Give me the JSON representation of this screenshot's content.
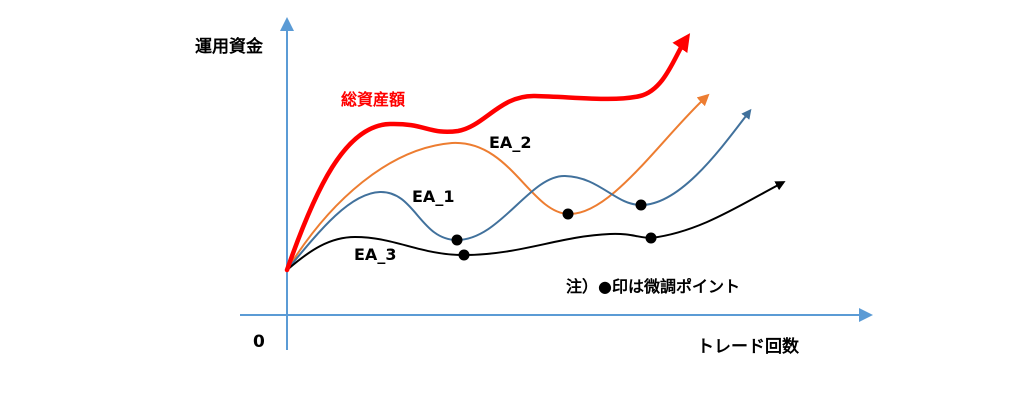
{
  "diagram": {
    "y_axis_label": "運用資金",
    "x_axis_label": "トレード回数",
    "origin_label": "0",
    "note": "注）●印は微調ポイント",
    "curves": [
      {
        "key": "total",
        "label": "総資産額",
        "color": "#ff0000"
      },
      {
        "key": "ea2",
        "label": "EA_2",
        "color": "#ed7d31"
      },
      {
        "key": "ea1",
        "label": "EA_1",
        "color": "#41719c"
      },
      {
        "key": "ea3",
        "label": "EA_3",
        "color": "#000000"
      }
    ],
    "axis_color": "#5b9bd5",
    "marker_color": "#000000"
  }
}
